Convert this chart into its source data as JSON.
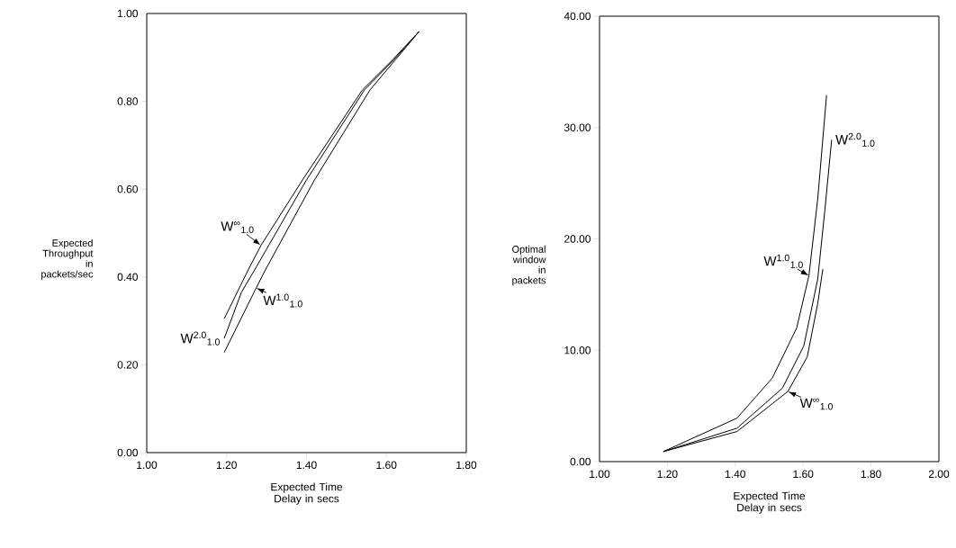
{
  "chart_data": [
    {
      "type": "line",
      "xlabel": "Expected Time Delay in secs",
      "ylabel": "Expected Throughput in packets/sec",
      "line_style": "solid",
      "xlim": [
        1.0,
        1.8
      ],
      "ylim": [
        0.0,
        1.0
      ],
      "xticks": [
        {
          "value": 1.0,
          "label": "1.00"
        },
        {
          "value": 1.2,
          "label": "1.20"
        },
        {
          "value": 1.4,
          "label": "1.40"
        },
        {
          "value": 1.6,
          "label": "1.60"
        },
        {
          "value": 1.8,
          "label": "1.80"
        }
      ],
      "yticks": [
        {
          "value": 0.0,
          "label": "0.00"
        },
        {
          "value": 0.2,
          "label": "0.20"
        },
        {
          "value": 0.4,
          "label": "0.40"
        },
        {
          "value": 0.6,
          "label": "0.60"
        },
        {
          "value": 0.8,
          "label": "0.80"
        },
        {
          "value": 1.0,
          "label": "1.00"
        }
      ],
      "series": [
        {
          "name": "W$^{∞}$$_{1.0}$",
          "color": "#000000",
          "x": [
            1.194,
            1.254,
            1.286,
            1.39,
            1.54,
            1.615,
            1.682
          ],
          "values": [
            0.305,
            0.416,
            0.472,
            0.621,
            0.826,
            0.894,
            0.959
          ]
        },
        {
          "name": "W$^{2.0}$$_{1.0}$",
          "color": "#000000",
          "x": [
            1.194,
            1.237,
            1.27,
            1.4,
            1.545,
            1.618,
            1.682
          ],
          "values": [
            0.26,
            0.365,
            0.416,
            0.621,
            0.826,
            0.894,
            0.959
          ]
        },
        {
          "name": "W$^{1.0}$$_{1.0}$",
          "color": "#000000",
          "x": [
            1.194,
            1.274,
            1.297,
            1.42,
            1.559,
            1.622,
            1.682
          ],
          "values": [
            0.228,
            0.375,
            0.416,
            0.621,
            0.826,
            0.894,
            0.959
          ]
        }
      ]
    },
    {
      "type": "line",
      "xlabel": "Expected Time Delay in secs",
      "ylabel": "Optimal window in packets",
      "line_style": "solid",
      "xlim": [
        1.0,
        2.0
      ],
      "ylim": [
        0.0,
        40.0
      ],
      "xticks": [
        {
          "value": 1.0,
          "label": "1.00"
        },
        {
          "value": 1.2,
          "label": "1.20"
        },
        {
          "value": 1.4,
          "label": "1.40"
        },
        {
          "value": 1.6,
          "label": "1.60"
        },
        {
          "value": 1.8,
          "label": "1.80"
        },
        {
          "value": 2.0,
          "label": "2.00"
        }
      ],
      "yticks": [
        {
          "value": 0,
          "label": "0.00"
        },
        {
          "value": 10,
          "label": "10.00"
        },
        {
          "value": 20,
          "label": "20.00"
        },
        {
          "value": 30,
          "label": "30.00"
        },
        {
          "value": 40,
          "label": "40.00"
        }
      ],
      "series": [
        {
          "name": "W$^{1.0}$$_{1.0}$",
          "color": "#000000",
          "x": [
            1.188,
            1.405,
            1.509,
            1.581,
            1.617,
            1.643,
            1.669
          ],
          "values": [
            0.9,
            3.9,
            7.5,
            12.0,
            16.7,
            23.6,
            32.9
          ]
        },
        {
          "name": "W$^{2.0}$$_{1.0}$",
          "color": "#000000",
          "x": [
            1.188,
            1.405,
            1.539,
            1.602,
            1.643,
            1.664,
            1.684
          ],
          "values": [
            0.9,
            3.0,
            6.6,
            10.4,
            16.4,
            22.6,
            28.9
          ]
        },
        {
          "name": "W$^{∞}$$_{1.0}$",
          "color": "#000000",
          "x": [
            1.188,
            1.405,
            1.555,
            1.612,
            1.643,
            1.658
          ],
          "values": [
            0.9,
            2.7,
            6.3,
            9.4,
            14.2,
            17.3
          ]
        }
      ]
    }
  ]
}
